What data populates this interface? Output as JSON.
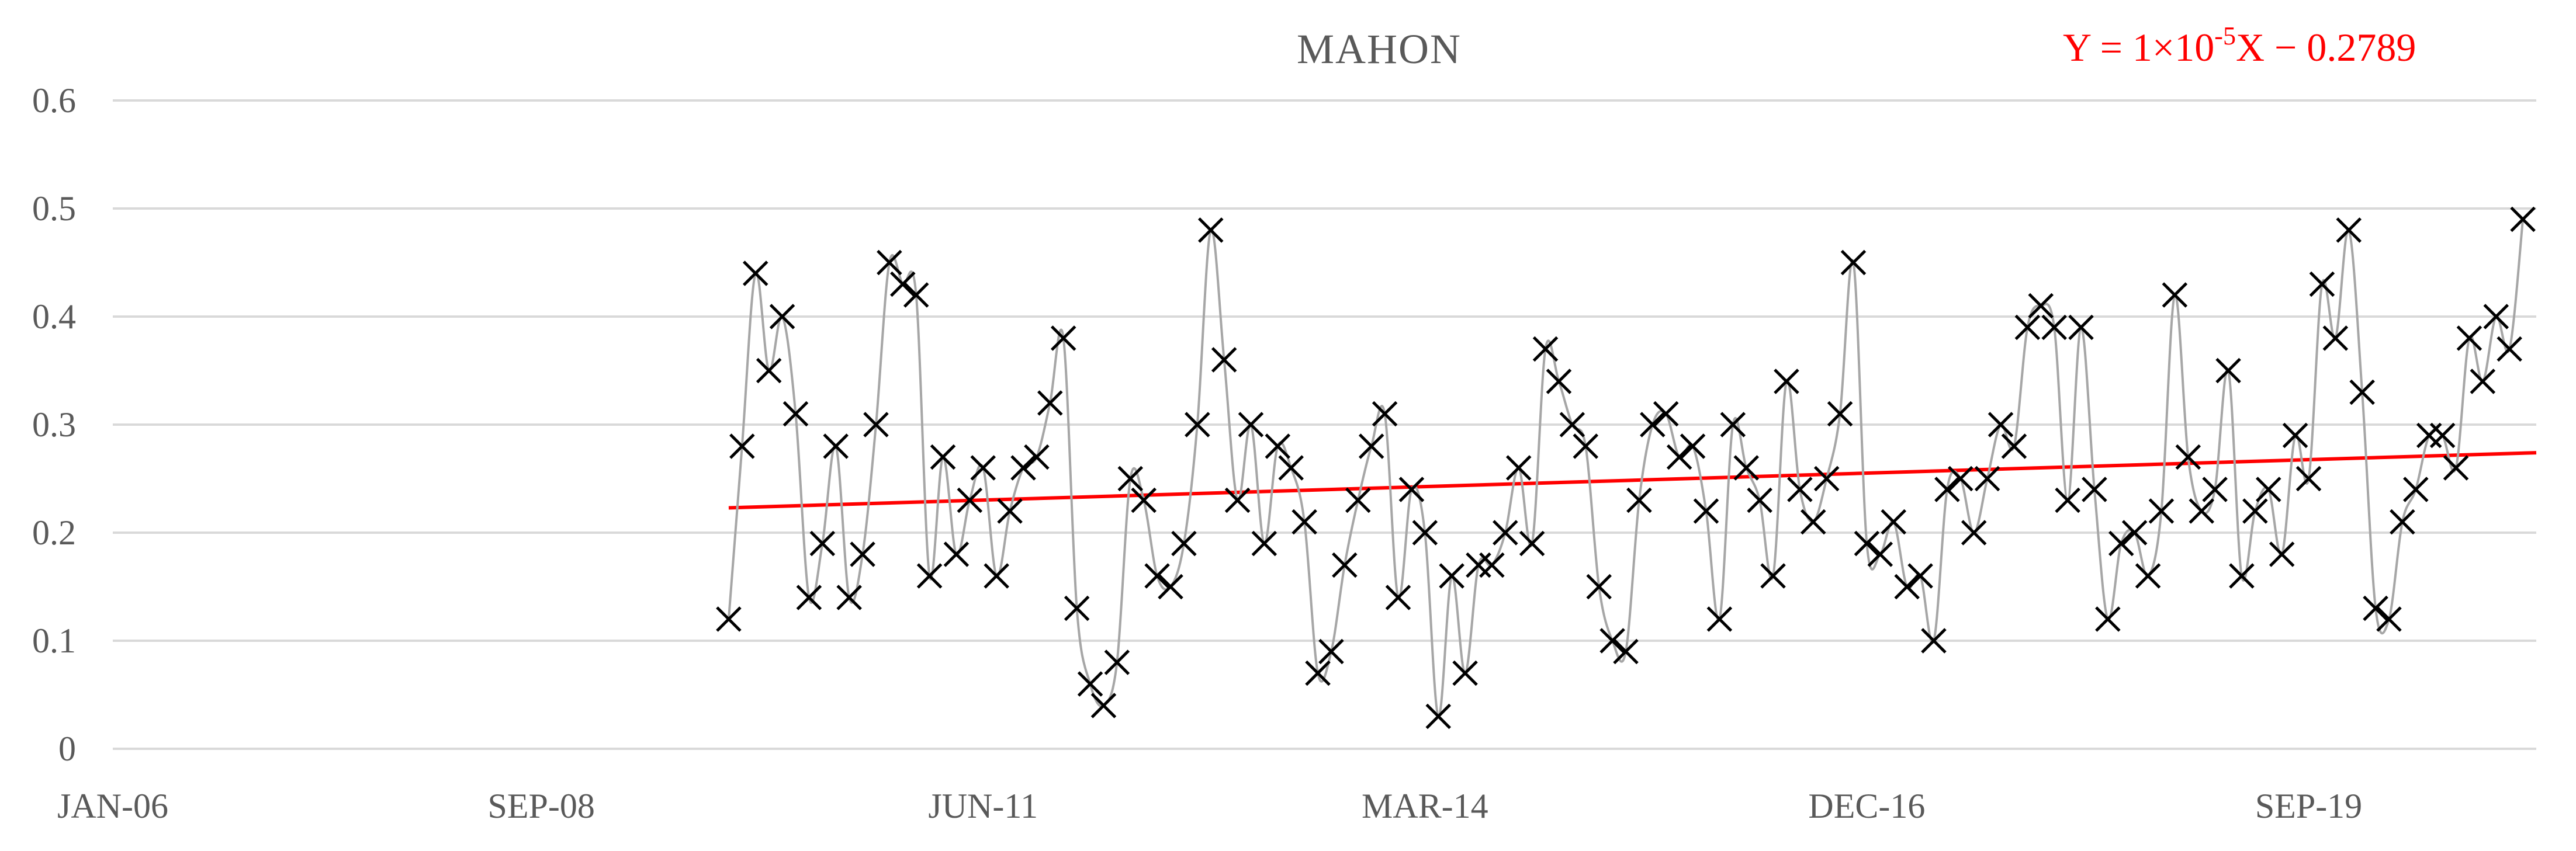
{
  "chart_data": {
    "type": "scatter",
    "title": "MAHON",
    "xlabel": "",
    "ylabel": "",
    "annotations": {
      "equation_prefix": "Y = 1×10",
      "equation_exponent": "-5",
      "equation_suffix": "X − 0.2789"
    },
    "x_ticks": [
      "JAN-06",
      "SEP-08",
      "JUN-11",
      "MAR-14",
      "DEC-16",
      "SEP-19"
    ],
    "y_ticks": [
      "0",
      "0.1",
      "0.2",
      "0.3",
      "0.4",
      "0.5",
      "0.6"
    ],
    "ylim": [
      0,
      0.6
    ],
    "xlim": [
      "2006-01",
      "2021-02"
    ],
    "grid": true,
    "colors": {
      "series_line": "#a6a6a6",
      "marker": "#000000",
      "trend": "#ff0000",
      "grid": "#d9d9d9",
      "text": "#595959"
    },
    "series": [
      {
        "marker": "x",
        "x_start": "2009-11",
        "x_step_months": 1,
        "values": [
          0.12,
          0.28,
          0.44,
          0.35,
          0.4,
          0.31,
          0.14,
          0.19,
          0.28,
          0.14,
          0.18,
          0.3,
          0.45,
          0.43,
          0.42,
          0.16,
          0.27,
          0.18,
          0.23,
          0.26,
          0.16,
          0.22,
          0.26,
          0.27,
          0.32,
          0.38,
          0.13,
          0.06,
          0.04,
          0.08,
          0.25,
          0.23,
          0.16,
          0.15,
          0.19,
          0.3,
          0.48,
          0.36,
          0.23,
          0.3,
          0.19,
          0.28,
          0.26,
          0.21,
          0.07,
          0.09,
          0.17,
          0.23,
          0.28,
          0.31,
          0.14,
          0.24,
          0.2,
          0.03,
          0.16,
          0.07,
          0.17,
          0.17,
          0.2,
          0.26,
          0.19,
          0.37,
          0.34,
          0.3,
          0.28,
          0.15,
          0.1,
          0.09,
          0.23,
          0.3,
          0.31,
          0.27,
          0.28,
          0.22,
          0.12,
          0.3,
          0.26,
          0.23,
          0.16,
          0.34,
          0.24,
          0.21,
          0.25,
          0.31,
          0.45,
          0.19,
          0.18,
          0.21,
          0.15,
          0.16,
          0.1,
          0.24,
          0.25,
          0.2,
          0.25,
          0.3,
          0.28,
          0.39,
          0.41,
          0.39,
          0.23,
          0.39,
          0.24,
          0.12,
          0.19,
          0.2,
          0.16,
          0.22,
          0.42,
          0.27,
          0.22,
          0.24,
          0.35,
          0.16,
          0.22,
          0.24,
          0.18,
          0.29,
          0.25,
          0.43,
          0.38,
          0.48,
          0.33,
          0.13,
          0.12,
          0.21,
          0.24,
          0.29,
          0.29,
          0.26,
          0.38,
          0.34,
          0.4,
          0.37,
          0.49
        ]
      }
    ],
    "trendline": {
      "type": "linear",
      "from": {
        "x": "2009-11",
        "y": 0.223
      },
      "to": {
        "x": "2021-02",
        "y": 0.274
      }
    }
  }
}
